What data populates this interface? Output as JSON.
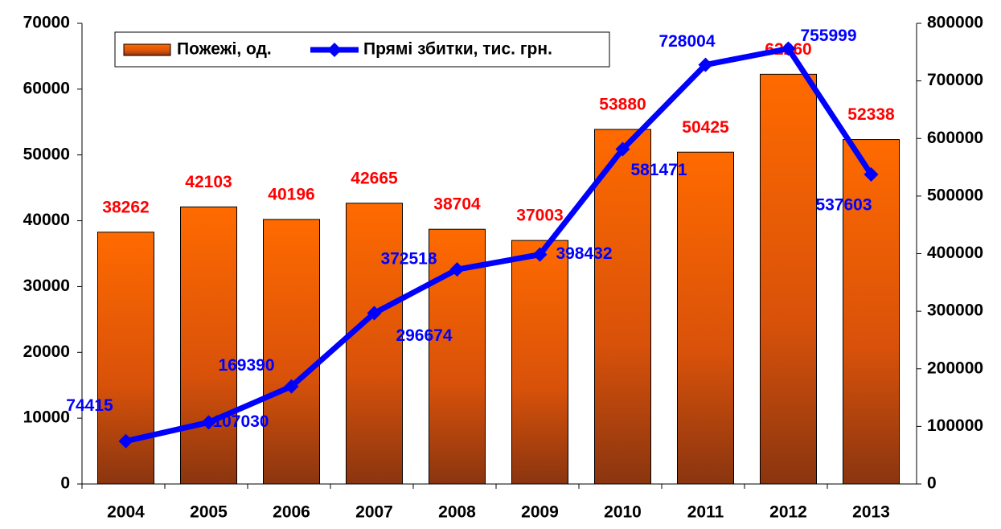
{
  "chart_data": {
    "type": "bar",
    "categories": [
      "2004",
      "2005",
      "2006",
      "2007",
      "2008",
      "2009",
      "2010",
      "2011",
      "2012",
      "2013"
    ],
    "series": [
      {
        "name": "Пожежі, од.",
        "type": "bar",
        "color": "#ff6600",
        "label_color": "#ff0000",
        "values": [
          38262,
          42103,
          40196,
          42665,
          38704,
          37003,
          53880,
          50425,
          62260,
          52338
        ]
      },
      {
        "name": "Прямі збитки, тис. грн.",
        "type": "line",
        "axis": "y2",
        "color": "#0000ff",
        "label_color": "#0000ff",
        "values": [
          74415,
          107030,
          169390,
          296674,
          372518,
          398432,
          581471,
          728004,
          755999,
          537603
        ]
      }
    ],
    "ylim": [
      0,
      70000
    ],
    "yticks": [
      0,
      10000,
      20000,
      30000,
      40000,
      50000,
      60000,
      70000
    ],
    "y2lim": [
      0,
      800000
    ],
    "y2ticks": [
      0,
      100000,
      200000,
      300000,
      400000,
      500000,
      600000,
      700000,
      800000
    ],
    "legend": "top-left"
  }
}
